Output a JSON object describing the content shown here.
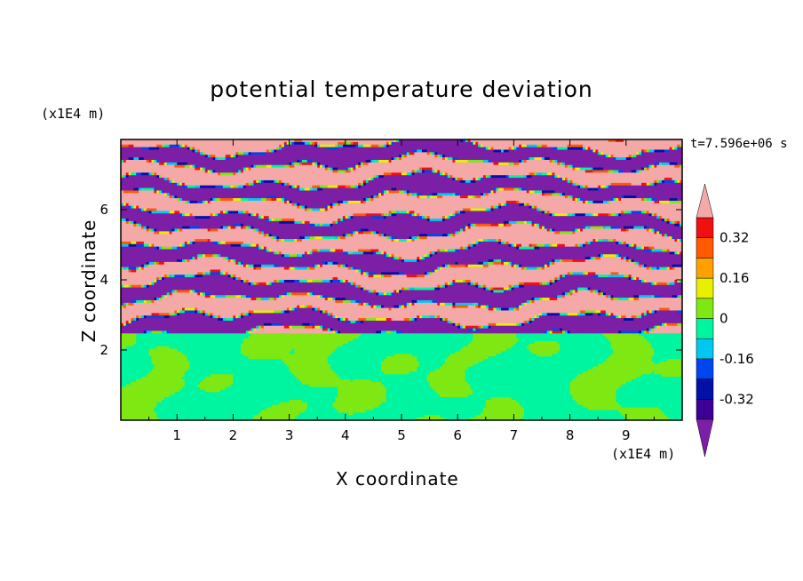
{
  "chart_data": {
    "type": "heatmap",
    "title": "potential temperature deviation",
    "xlabel": "X coordinate",
    "ylabel": "Z coordinate",
    "x_unit": "(x1E4 m)",
    "z_unit": "(x1E4 m)",
    "timestamp": "t=7.596e+06 s",
    "xlim": [
      0,
      10
    ],
    "zlim": [
      0,
      8
    ],
    "x_ticks": [
      "1",
      "2",
      "3",
      "4",
      "5",
      "6",
      "7",
      "8",
      "9"
    ],
    "z_ticks": [
      "2",
      "4",
      "6"
    ],
    "colorbar": {
      "levels": [
        -0.48,
        -0.4,
        -0.32,
        -0.24,
        -0.16,
        -0.08,
        0,
        0.08,
        0.16,
        0.24,
        0.32,
        0.4,
        0.48
      ],
      "tick_labels": [
        "0.32",
        "0.16",
        "0",
        "-0.16",
        "-0.32"
      ],
      "colors": [
        "#7d1fa6",
        "#3c0095",
        "#0010a8",
        "#0046f0",
        "#00c8f0",
        "#00f5a0",
        "#7fe812",
        "#e8f000",
        "#ffa000",
        "#ff5a00",
        "#f01010",
        "#f4a8a8"
      ],
      "extend": "both"
    }
  }
}
